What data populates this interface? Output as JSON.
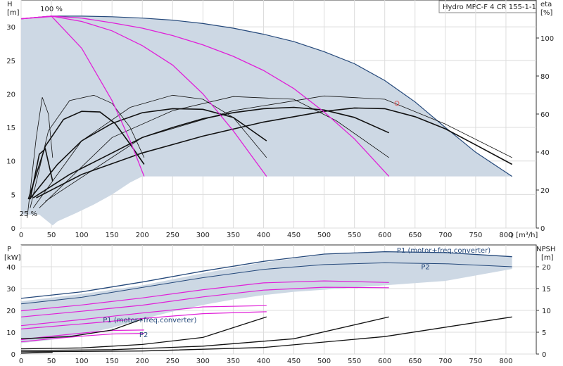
{
  "title": "Hydro MPC-F 4 CR 155-1-1",
  "colors": {
    "envelope_fill": "#cdd8e4",
    "envelope_edge": "#24487a",
    "speed_curve": "#e020d8",
    "pump_curve": "#111111",
    "grid": "#dcdcdc",
    "axis": "#333333"
  },
  "chart_data": [
    {
      "type": "line",
      "name": "qh",
      "x_label": "Q [m³/h]",
      "y_label_top": "H",
      "y_label_unit": "[m]",
      "y2_label_top": "eta",
      "y2_label_unit": "[%]",
      "xlim": [
        0,
        850
      ],
      "ylim": [
        0,
        34
      ],
      "y2lim": [
        0,
        120
      ],
      "grid": true,
      "x_ticks": [
        0,
        50,
        100,
        150,
        200,
        250,
        300,
        350,
        400,
        450,
        500,
        550,
        600,
        650,
        700,
        750,
        800
      ],
      "y_ticks": [
        0,
        5,
        10,
        15,
        20,
        25,
        30
      ],
      "y2_ticks": [
        0,
        20,
        40,
        60,
        80,
        100
      ],
      "annotations": [
        {
          "text": "100 %",
          "x": 50,
          "y": 32.3
        },
        {
          "text": "25 %",
          "x": 12,
          "y": 1.8
        }
      ],
      "operating_point": {
        "x": 620,
        "y": 18.6
      },
      "envelope": [
        [
          0,
          31.2
        ],
        [
          50,
          31.6
        ],
        [
          100,
          31.6
        ],
        [
          150,
          31.5
        ],
        [
          200,
          31.3
        ],
        [
          250,
          31.0
        ],
        [
          300,
          30.5
        ],
        [
          350,
          29.8
        ],
        [
          400,
          28.9
        ],
        [
          450,
          27.8
        ],
        [
          500,
          26.3
        ],
        [
          550,
          24.5
        ],
        [
          600,
          22.0
        ],
        [
          650,
          18.8
        ],
        [
          700,
          15.0
        ],
        [
          750,
          11.3
        ],
        [
          810,
          7.7
        ],
        [
          200,
          7.7
        ],
        [
          180,
          6.8
        ],
        [
          150,
          5.0
        ],
        [
          120,
          3.5
        ],
        [
          90,
          2.2
        ],
        [
          60,
          1.0
        ],
        [
          52,
          0.4
        ],
        [
          30,
          2.0
        ],
        [
          0,
          2.0
        ]
      ],
      "speed_curves": [
        {
          "values": [
            [
              0,
              31.2
            ],
            [
              50,
              31.6
            ],
            [
              100,
              26.8
            ],
            [
              150,
              19.0
            ],
            [
              180,
              13.0
            ],
            [
              203,
              7.7
            ]
          ]
        },
        {
          "values": [
            [
              0,
              31.2
            ],
            [
              50,
              31.6
            ],
            [
              100,
              30.8
            ],
            [
              150,
              29.4
            ],
            [
              200,
              27.2
            ],
            [
              250,
              24.3
            ],
            [
              300,
              20.0
            ],
            [
              350,
              14.5
            ],
            [
              405,
              7.7
            ]
          ]
        },
        {
          "values": [
            [
              0,
              31.2
            ],
            [
              50,
              31.6
            ],
            [
              100,
              31.3
            ],
            [
              150,
              30.6
            ],
            [
              200,
              29.8
            ],
            [
              250,
              28.7
            ],
            [
              300,
              27.3
            ],
            [
              350,
              25.6
            ],
            [
              400,
              23.5
            ],
            [
              450,
              20.8
            ],
            [
              500,
              17.3
            ],
            [
              550,
              13.3
            ],
            [
              607,
              7.7
            ]
          ]
        },
        {
          "values": [
            [
              0,
              31.2
            ],
            [
              60,
              31.6
            ]
          ]
        }
      ],
      "curves_thick": [
        {
          "values": [
            [
              12,
              4.3
            ],
            [
              40,
              12.2
            ],
            [
              70,
              16.2
            ],
            [
              100,
              17.4
            ],
            [
              130,
              17.3
            ],
            [
              155,
              15.6
            ],
            [
              180,
              12.5
            ],
            [
              203,
              9.5
            ]
          ]
        },
        {
          "values": [
            [
              14,
              4.3
            ],
            [
              60,
              9.5
            ],
            [
              100,
              13.0
            ],
            [
              150,
              15.6
            ],
            [
              200,
              17.2
            ],
            [
              250,
              17.8
            ],
            [
              300,
              17.7
            ],
            [
              350,
              16.5
            ],
            [
              405,
              13.0
            ]
          ]
        },
        {
          "values": [
            [
              20,
              4.5
            ],
            [
              80,
              8.0
            ],
            [
              150,
              11.2
            ],
            [
              200,
              13.5
            ],
            [
              250,
              15.0
            ],
            [
              300,
              16.3
            ],
            [
              350,
              17.2
            ],
            [
              400,
              17.8
            ],
            [
              450,
              18.0
            ],
            [
              500,
              17.6
            ],
            [
              550,
              16.5
            ],
            [
              607,
              14.2
            ]
          ]
        },
        {
          "values": [
            [
              25,
              4.5
            ],
            [
              100,
              8.0
            ],
            [
              200,
              11.2
            ],
            [
              300,
              13.7
            ],
            [
              400,
              15.8
            ],
            [
              500,
              17.4
            ],
            [
              550,
              17.9
            ],
            [
              600,
              17.8
            ],
            [
              650,
              16.6
            ],
            [
              700,
              14.8
            ],
            [
              750,
              12.4
            ],
            [
              810,
              9.5
            ]
          ]
        },
        {
          "values": [
            [
              15,
              4.3
            ],
            [
              30,
              11.0
            ],
            [
              40,
              11.8
            ],
            [
              52,
              7.0
            ]
          ]
        }
      ],
      "curves_thin": [
        {
          "values": [
            [
              10,
              1.5
            ],
            [
              25,
              13.5
            ],
            [
              35,
              19.5
            ],
            [
              45,
              17.0
            ],
            [
              52,
              10.5
            ]
          ]
        },
        {
          "values": [
            [
              15,
              3.0
            ],
            [
              45,
              14.5
            ],
            [
              80,
              19.0
            ],
            [
              120,
              19.8
            ],
            [
              150,
              18.6
            ],
            [
              180,
              15.0
            ],
            [
              203,
              10.5
            ]
          ]
        },
        {
          "values": [
            [
              20,
              3.0
            ],
            [
              100,
              13.0
            ],
            [
              180,
              18.0
            ],
            [
              250,
              19.8
            ],
            [
              300,
              19.2
            ],
            [
              350,
              16.5
            ],
            [
              405,
              10.5
            ]
          ]
        },
        {
          "values": [
            [
              30,
              3.0
            ],
            [
              150,
              13.5
            ],
            [
              250,
              17.5
            ],
            [
              350,
              19.6
            ],
            [
              450,
              19.2
            ],
            [
              520,
              16.0
            ],
            [
              607,
              10.5
            ]
          ]
        },
        {
          "values": [
            [
              40,
              4.0
            ],
            [
              200,
              13.5
            ],
            [
              350,
              17.5
            ],
            [
              500,
              19.7
            ],
            [
              600,
              19.2
            ],
            [
              700,
              15.5
            ],
            [
              810,
              10.5
            ]
          ]
        }
      ]
    },
    {
      "type": "line",
      "name": "power_npsh",
      "y_label_top": "P",
      "y_label_unit": "[kW]",
      "y2_label_top": "NPSH",
      "y2_label_unit": "[m]",
      "xlim": [
        0,
        850
      ],
      "ylim": [
        0,
        50
      ],
      "y2lim": [
        0,
        25
      ],
      "grid": true,
      "y_ticks": [
        0,
        10,
        20,
        30,
        40
      ],
      "y2_ticks": [
        0,
        5,
        10,
        15,
        20
      ],
      "annotations": [
        {
          "text": "P1 (motor+freq.converter)",
          "x": 620,
          "y": 46.5
        },
        {
          "text": "P2",
          "x": 660,
          "y": 38.8
        },
        {
          "text": "P1 (motor+freq.converter)",
          "x": 135,
          "y": 14.5
        },
        {
          "text": "P2",
          "x": 195,
          "y": 7.8
        }
      ],
      "band_upper": [
        [
          0,
          24.2
        ],
        [
          100,
          27.5
        ],
        [
          200,
          31.5
        ],
        [
          300,
          37.0
        ],
        [
          400,
          42.0
        ],
        [
          500,
          45.5
        ],
        [
          600,
          46.8
        ],
        [
          700,
          46.6
        ],
        [
          810,
          44.8
        ]
      ],
      "band_lower": [
        [
          0,
          5.0
        ],
        [
          50,
          6.5
        ],
        [
          100,
          9.0
        ],
        [
          150,
          12.0
        ],
        [
          200,
          16.0
        ],
        [
          250,
          19.5
        ],
        [
          300,
          22.5
        ],
        [
          350,
          25.0
        ],
        [
          400,
          27.0
        ],
        [
          450,
          28.5
        ],
        [
          500,
          29.5
        ],
        [
          550,
          30.5
        ],
        [
          600,
          31.5
        ],
        [
          700,
          33.5
        ],
        [
          810,
          39.0
        ]
      ],
      "p1_outer": [
        [
          0,
          25.5
        ],
        [
          100,
          28.5
        ],
        [
          200,
          33.0
        ],
        [
          300,
          38.0
        ],
        [
          400,
          42.5
        ],
        [
          500,
          45.8
        ],
        [
          600,
          46.9
        ],
        [
          700,
          46.5
        ],
        [
          810,
          44.6
        ]
      ],
      "p2_outer": [
        [
          0,
          23.0
        ],
        [
          100,
          26.0
        ],
        [
          200,
          30.5
        ],
        [
          300,
          35.0
        ],
        [
          400,
          38.8
        ],
        [
          500,
          41.0
        ],
        [
          600,
          41.8
        ],
        [
          700,
          41.4
        ],
        [
          810,
          40.0
        ]
      ],
      "p_speed": [
        {
          "values": [
            [
              0,
              19.8
            ],
            [
              100,
              22.5
            ],
            [
              200,
              25.7
            ],
            [
              300,
              29.5
            ],
            [
              400,
              32.6
            ],
            [
              500,
              33.5
            ],
            [
              607,
              32.8
            ]
          ]
        },
        {
          "values": [
            [
              0,
              17.0
            ],
            [
              100,
              19.6
            ],
            [
              200,
              22.4
            ],
            [
              300,
              26.2
            ],
            [
              400,
              29.3
            ],
            [
              500,
              30.6
            ],
            [
              607,
              30.4
            ]
          ]
        },
        {
          "values": [
            [
              0,
              13.0
            ],
            [
              100,
              15.8
            ],
            [
              200,
              18.8
            ],
            [
              300,
              21.6
            ],
            [
              405,
              22.2
            ]
          ]
        },
        {
          "values": [
            [
              0,
              11.5
            ],
            [
              100,
              13.8
            ],
            [
              200,
              16.3
            ],
            [
              300,
              18.5
            ],
            [
              405,
              19.4
            ]
          ]
        },
        {
          "values": [
            [
              0,
              6.6
            ],
            [
              50,
              8.2
            ],
            [
              100,
              9.6
            ],
            [
              150,
              10.8
            ],
            [
              203,
              11.0
            ]
          ]
        },
        {
          "values": [
            [
              0,
              5.6
            ],
            [
              50,
              7.0
            ],
            [
              100,
              8.2
            ],
            [
              150,
              9.2
            ],
            [
              203,
              9.5
            ]
          ]
        }
      ],
      "npsh": [
        {
          "values": [
            [
              0,
              3.5
            ],
            [
              80,
              4.0
            ],
            [
              150,
              5.5
            ],
            [
              200,
              8.0
            ]
          ]
        },
        {
          "values": [
            [
              0,
              1.2
            ],
            [
              100,
              1.4
            ],
            [
              200,
              2.2
            ],
            [
              300,
              3.8
            ],
            [
              405,
              8.5
            ]
          ]
        },
        {
          "values": [
            [
              0,
              0.8
            ],
            [
              150,
              1.0
            ],
            [
              300,
              1.8
            ],
            [
              450,
              3.5
            ],
            [
              607,
              8.5
            ]
          ]
        },
        {
          "values": [
            [
              0,
              0.5
            ],
            [
              200,
              0.7
            ],
            [
              400,
              1.5
            ],
            [
              600,
              4.0
            ],
            [
              810,
              8.5
            ]
          ]
        },
        {
          "values": [
            [
              0,
              0.2
            ],
            [
              52,
              0.4
            ]
          ]
        }
      ]
    }
  ]
}
